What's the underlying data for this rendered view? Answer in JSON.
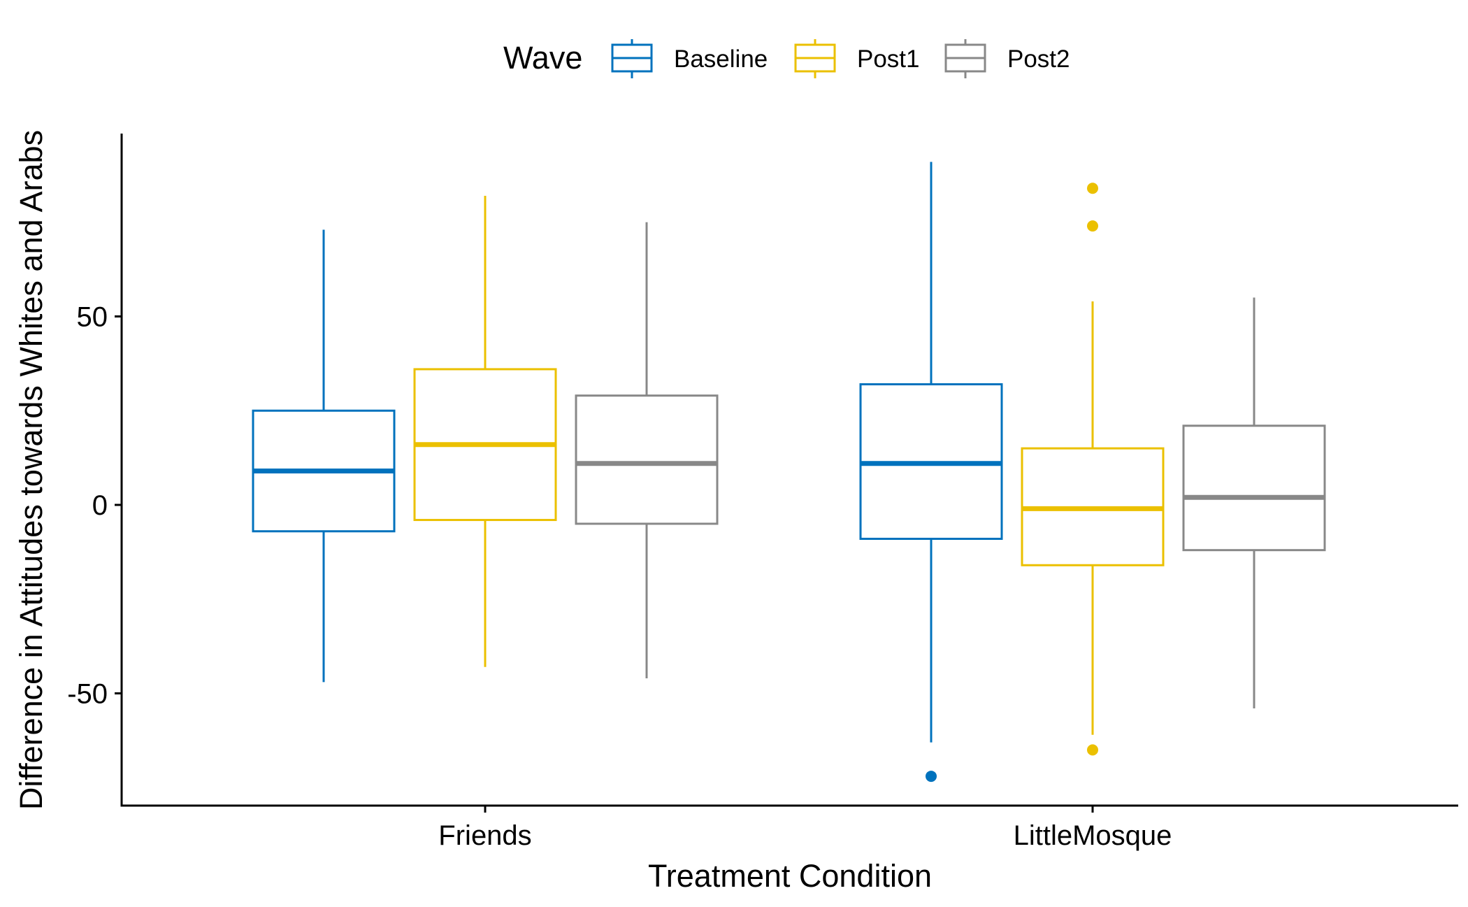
{
  "chart_data": {
    "type": "boxplot",
    "xlabel": "Treatment Condition",
    "ylabel": "Difference in Attitudes towards Whites and Arabs",
    "ylim": [
      -80,
      98
    ],
    "yticks": [
      50,
      0,
      -50
    ],
    "categories": [
      "Friends",
      "LittleMosque"
    ],
    "legend": {
      "title": "Wave",
      "position": "top"
    },
    "series": [
      {
        "name": "Baseline",
        "color": "#0072BD",
        "boxes": [
          {
            "category": "Friends",
            "lower_whisker": -47,
            "q1": -7,
            "median": 9,
            "q3": 25,
            "upper_whisker": 73,
            "outliers": []
          },
          {
            "category": "LittleMosque",
            "lower_whisker": -63,
            "q1": -9,
            "median": 11,
            "q3": 32,
            "upper_whisker": 91,
            "outliers": [
              -72
            ]
          }
        ]
      },
      {
        "name": "Post1",
        "color": "#EBC000",
        "boxes": [
          {
            "category": "Friends",
            "lower_whisker": -43,
            "q1": -4,
            "median": 16,
            "q3": 36,
            "upper_whisker": 82,
            "outliers": []
          },
          {
            "category": "LittleMosque",
            "lower_whisker": -61,
            "q1": -16,
            "median": -1,
            "q3": 15,
            "upper_whisker": 54,
            "outliers": [
              84,
              74,
              -65
            ]
          }
        ]
      },
      {
        "name": "Post2",
        "color": "#888888",
        "boxes": [
          {
            "category": "Friends",
            "lower_whisker": -46,
            "q1": -5,
            "median": 11,
            "q3": 29,
            "upper_whisker": 75,
            "outliers": []
          },
          {
            "category": "LittleMosque",
            "lower_whisker": -54,
            "q1": -12,
            "median": 2,
            "q3": 21,
            "upper_whisker": 55,
            "outliers": []
          }
        ]
      }
    ]
  }
}
